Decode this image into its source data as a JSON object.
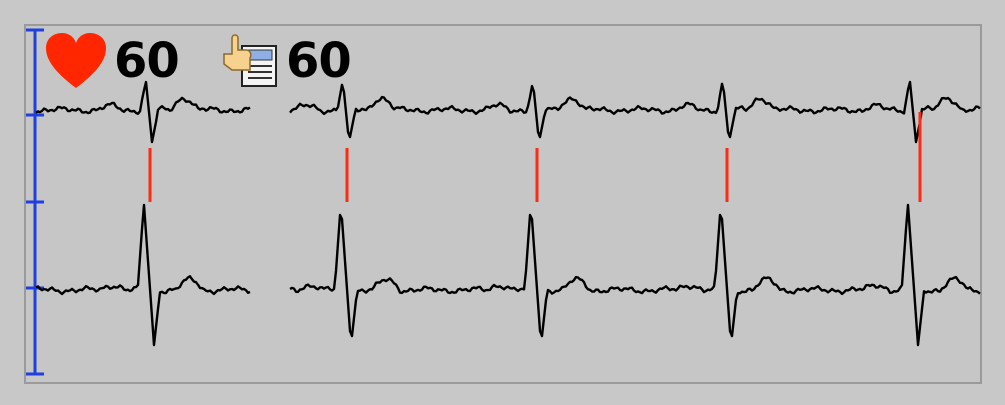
{
  "monitor": {
    "heart_rate": "60",
    "secondary_rate": "60",
    "colors": {
      "scale": "#1f3fe0",
      "trace": "#000000",
      "marker": "#ff2a10",
      "heart": "#ff2600"
    },
    "icons": [
      "heart-icon",
      "hand-document-icon",
      "scale-bar-icon"
    ]
  }
}
